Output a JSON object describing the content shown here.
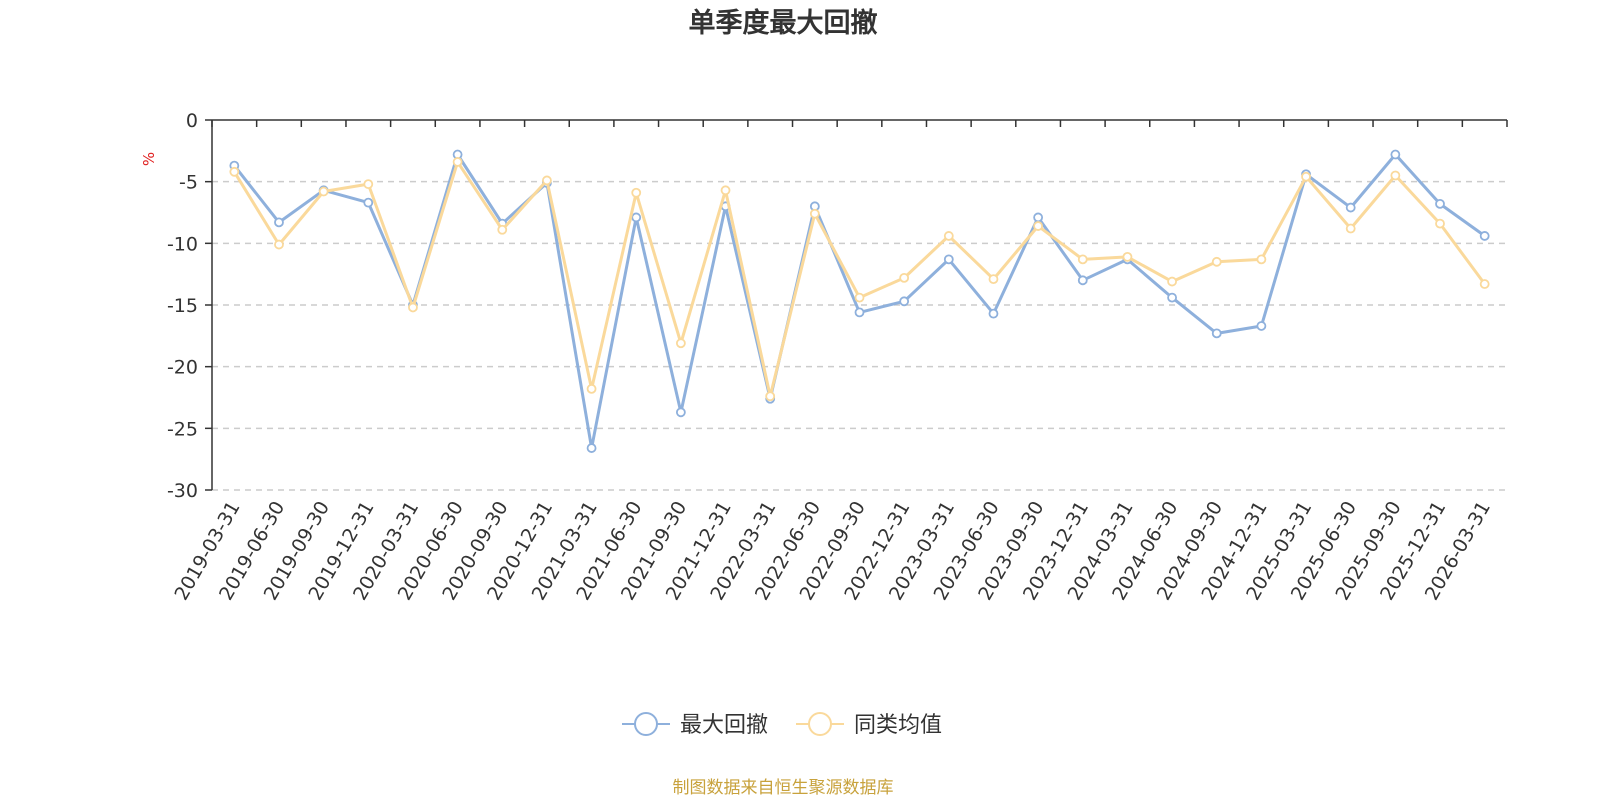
{
  "chart_data": {
    "type": "line",
    "title": "单季度最大回撤",
    "ylabel": "%",
    "ylim": [
      -30,
      0
    ],
    "yticks": [
      0,
      -5,
      -10,
      -15,
      -20,
      -25,
      -30
    ],
    "grid": true,
    "legend_position": "bottom-center",
    "categories": [
      "2019-03-31",
      "2019-06-30",
      "2019-09-30",
      "2019-12-31",
      "2020-03-31",
      "2020-06-30",
      "2020-09-30",
      "2020-12-31",
      "2021-03-31",
      "2021-06-30",
      "2021-09-30",
      "2021-12-31",
      "2022-03-31",
      "2022-06-30",
      "2022-09-30",
      "2022-12-31",
      "2023-03-31",
      "2023-06-30",
      "2023-09-30",
      "2023-12-31",
      "2024-03-31",
      "2024-06-30",
      "2024-09-30",
      "2024-12-31",
      "2025-03-31",
      "2025-06-30",
      "2025-09-30",
      "2025-12-31",
      "2026-03-31"
    ],
    "series": [
      {
        "name": "最大回撤",
        "color": "#8eb0dc",
        "values": [
          -3.7,
          -8.3,
          -5.7,
          -6.7,
          -15.0,
          -2.8,
          -8.4,
          -5.1,
          -26.6,
          -7.9,
          -23.7,
          -7.0,
          -22.6,
          -7.0,
          -15.6,
          -14.7,
          -11.3,
          -15.7,
          -7.9,
          -13.0,
          -11.3,
          -14.4,
          -17.3,
          -16.7,
          -4.4,
          -7.1,
          -2.8,
          -6.8,
          -9.4
        ]
      },
      {
        "name": "同类均值",
        "color": "#fad99b",
        "values": [
          -4.2,
          -10.1,
          -5.8,
          -5.2,
          -15.2,
          -3.4,
          -8.9,
          -4.9,
          -21.8,
          -5.9,
          -18.1,
          -5.7,
          -22.4,
          -7.6,
          -14.4,
          -12.8,
          -9.4,
          -12.9,
          -8.6,
          -11.3,
          -11.1,
          -13.1,
          -11.5,
          -11.3,
          -4.6,
          -8.8,
          -4.5,
          -8.4,
          -13.3
        ]
      }
    ],
    "source_note": "制图数据来自恒生聚源数据库"
  }
}
